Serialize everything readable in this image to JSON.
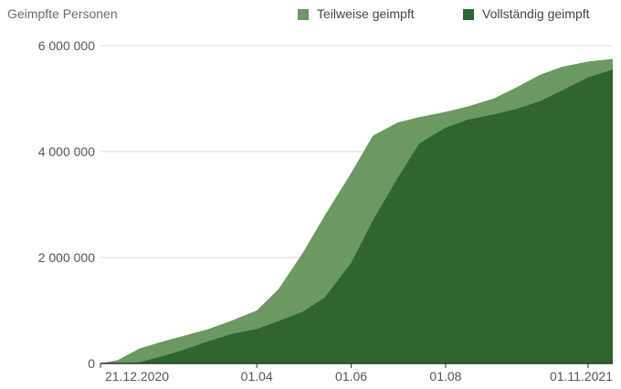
{
  "chart_data": {
    "type": "area",
    "ylabel": "Geimpfte Personen",
    "ylim": [
      0,
      6000000
    ],
    "yticks": [
      0,
      2000000,
      4000000,
      6000000
    ],
    "ytick_labels": [
      "0",
      "2 000 000",
      "4 000 000",
      "6 000 000"
    ],
    "xlim": [
      "2020-12-21",
      "2021-11-17"
    ],
    "xticks": [
      "2020-12-21",
      "2021-04-01",
      "2021-06-01",
      "2021-08-01",
      "2021-11-01"
    ],
    "xtick_labels": [
      "21.12.2020",
      "01.04",
      "01.06",
      "01.08",
      "01.11.2021"
    ],
    "grid": true,
    "legend_position": "top-right",
    "x": [
      "2020-12-21",
      "2021-01-01",
      "2021-01-15",
      "2021-02-01",
      "2021-02-15",
      "2021-03-01",
      "2021-03-15",
      "2021-04-01",
      "2021-04-15",
      "2021-05-01",
      "2021-05-15",
      "2021-06-01",
      "2021-06-15",
      "2021-07-01",
      "2021-07-15",
      "2021-08-01",
      "2021-08-15",
      "2021-09-01",
      "2021-09-15",
      "2021-10-01",
      "2021-10-15",
      "2021-11-01",
      "2021-11-17"
    ],
    "series": [
      {
        "name": "Teilweise geimpft",
        "color": "#6a9a62",
        "values": [
          0,
          60000,
          280000,
          430000,
          540000,
          650000,
          800000,
          1000000,
          1400000,
          2100000,
          2800000,
          3600000,
          4300000,
          4550000,
          4650000,
          4750000,
          4850000,
          5000000,
          5200000,
          5450000,
          5600000,
          5700000,
          5750000
        ]
      },
      {
        "name": "Vollständig geimpft",
        "color": "#2f6530",
        "values": [
          0,
          0,
          20000,
          150000,
          280000,
          420000,
          550000,
          650000,
          800000,
          980000,
          1250000,
          1900000,
          2700000,
          3500000,
          4150000,
          4450000,
          4600000,
          4700000,
          4800000,
          4950000,
          5150000,
          5400000,
          5550000
        ]
      }
    ]
  }
}
